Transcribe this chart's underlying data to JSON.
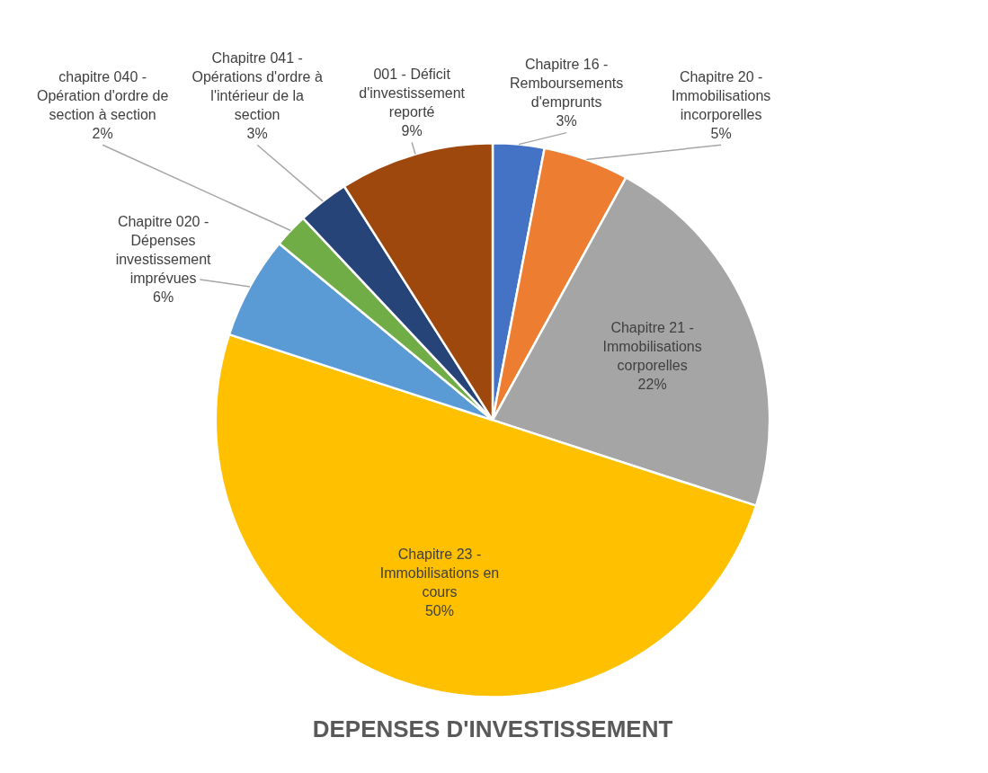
{
  "chart_data": {
    "type": "pie",
    "title": "DEPENSES D'INVESTISSEMENT",
    "categories": [
      "Chapitre 16 - Remboursements d'emprunts",
      "Chapitre 20 - Immobilisations incorporelles",
      "Chapitre 21 - Immobilisations corporelles",
      "Chapitre 23 - Immobilisations en cours",
      "Chapitre 020 - Dépenses investissement imprévues",
      "chapitre 040 - Opération d'ordre de section à section",
      "Chapitre 041 - Opérations d'ordre à l'intérieur de la section",
      "001 - Déficit d'investissement reporté"
    ],
    "values": [
      3,
      5,
      22,
      50,
      6,
      2,
      3,
      9
    ],
    "colors": [
      "#4472c4",
      "#ed7d31",
      "#a5a5a5",
      "#ffc000",
      "#5b9bd5",
      "#70ad47",
      "#264478",
      "#9e480e"
    ],
    "value_labels": [
      "3%",
      "5%",
      "22%",
      "50%",
      "6%",
      "2%",
      "3%",
      "9%"
    ],
    "legend": false
  }
}
